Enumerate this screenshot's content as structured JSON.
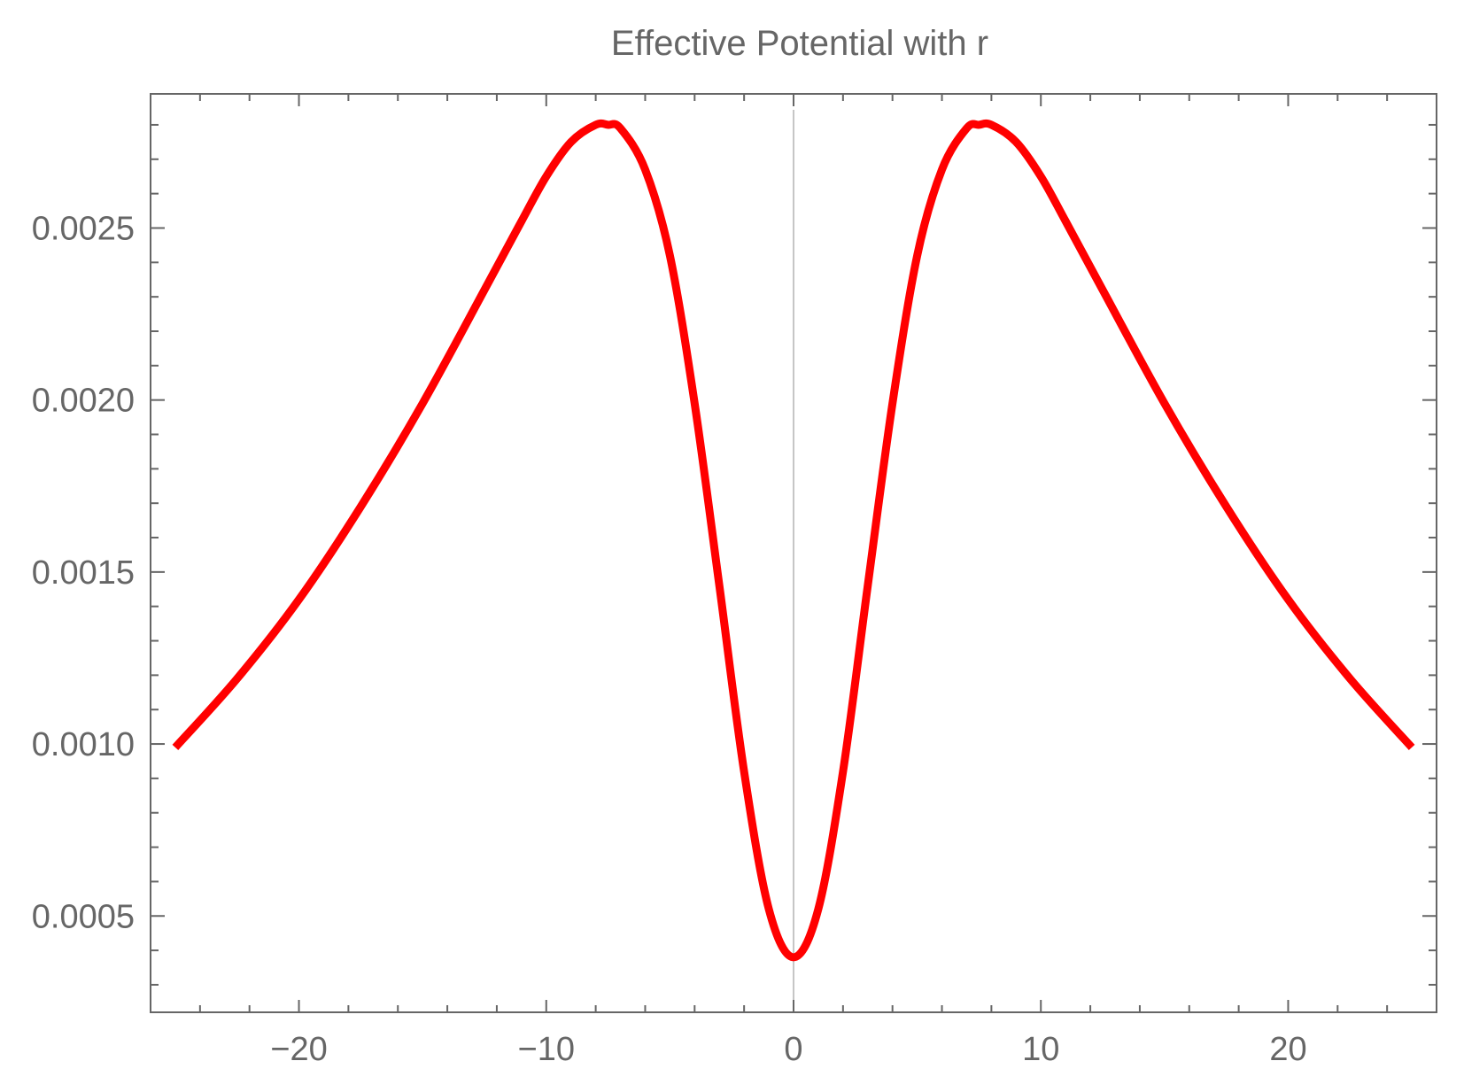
{
  "chart_data": {
    "type": "line",
    "title": "Effective Potential with r",
    "xlabel": "",
    "ylabel": "",
    "xlim": [
      -26,
      26
    ],
    "ylim": [
      0.00022,
      0.00289
    ],
    "x_ticks": [
      -20,
      -10,
      0,
      10,
      20
    ],
    "x_tick_labels": [
      "−20",
      "−10",
      "0",
      "10",
      "20"
    ],
    "y_ticks": [
      0.0005,
      0.001,
      0.0015,
      0.002,
      0.0025
    ],
    "y_tick_labels": [
      "0.0005",
      "0.0010",
      "0.0015",
      "0.0020",
      "0.0025"
    ],
    "grid": false,
    "frame": true,
    "colors": {
      "line": "#ff0000",
      "frame": "#666666",
      "axis": "#b3b3b3",
      "text": "#666666"
    },
    "series": [
      {
        "x": [
          -25,
          -22.5,
          -20,
          -17.5,
          -15,
          -12.5,
          -11,
          -10,
          -9,
          -8,
          -7.5,
          -7,
          -6,
          -5,
          -4,
          -3,
          -2,
          -1,
          0,
          1,
          2,
          3,
          4,
          5,
          6,
          7,
          7.5,
          8,
          9,
          10,
          11,
          12.5,
          15,
          17.5,
          20,
          22.5,
          25
        ],
        "y": [
          0.00099,
          0.00119,
          0.00142,
          0.00169,
          0.00199,
          0.00232,
          0.00252,
          0.00265,
          0.00275,
          0.0028,
          0.0028,
          0.00279,
          0.00267,
          0.00242,
          0.00199,
          0.00146,
          0.00092,
          0.00052,
          0.00038,
          0.00052,
          0.00092,
          0.00146,
          0.00199,
          0.00242,
          0.00267,
          0.00279,
          0.0028,
          0.0028,
          0.00275,
          0.00265,
          0.00252,
          0.00232,
          0.00199,
          0.00169,
          0.00142,
          0.00119,
          0.00099
        ]
      }
    ]
  }
}
